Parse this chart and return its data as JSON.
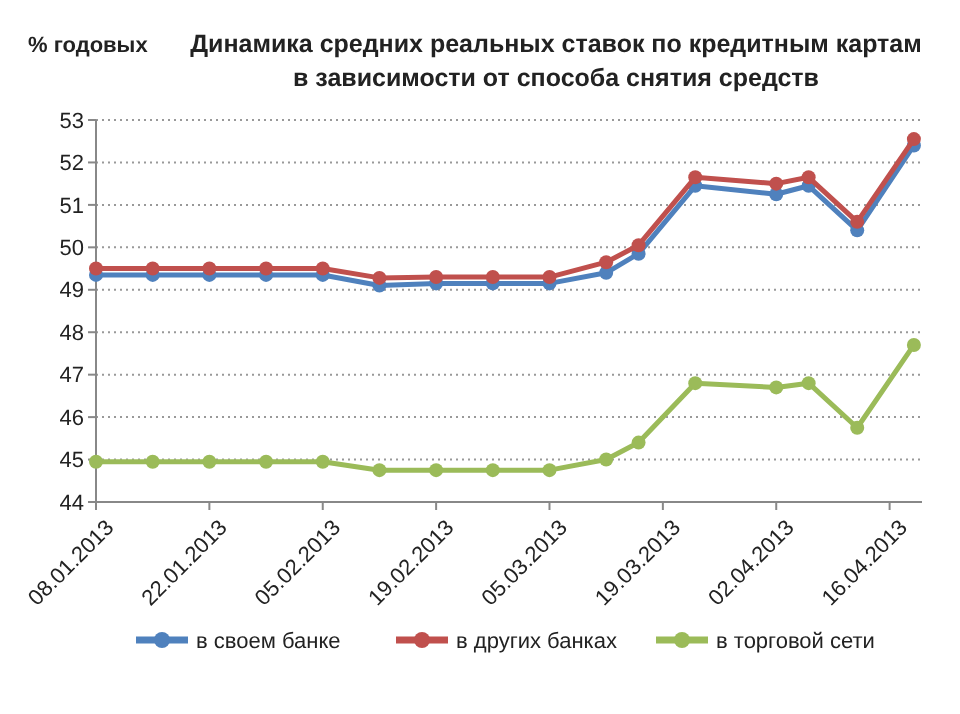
{
  "chart_data": {
    "type": "line",
    "title": "Динамика средних реальных ставок по кредитным картам в зависимости от способа снятия средств",
    "ylabel": "% годовых",
    "x": [
      "2013-01-08",
      "2013-01-15",
      "2013-01-22",
      "2013-01-29",
      "2013-02-05",
      "2013-02-12",
      "2013-02-19",
      "2013-02-26",
      "2013-03-05",
      "2013-03-12",
      "2013-03-16",
      "2013-03-23",
      "2013-04-02",
      "2013-04-06",
      "2013-04-12",
      "2013-04-19"
    ],
    "series": [
      {
        "name": "в своем банке",
        "color": "#4f81bd",
        "values": [
          49.35,
          49.35,
          49.35,
          49.35,
          49.35,
          49.1,
          49.15,
          49.15,
          49.15,
          49.4,
          49.85,
          51.45,
          51.25,
          51.45,
          50.4,
          52.4
        ]
      },
      {
        "name": "в других банках",
        "color": "#c0504d",
        "values": [
          49.5,
          49.5,
          49.5,
          49.5,
          49.5,
          49.28,
          49.3,
          49.3,
          49.3,
          49.65,
          50.05,
          51.65,
          51.5,
          51.65,
          50.6,
          52.55
        ]
      },
      {
        "name": "в торговой сети",
        "color": "#9bbb59",
        "values": [
          44.95,
          44.95,
          44.95,
          44.95,
          44.95,
          44.75,
          44.75,
          44.75,
          44.75,
          45.0,
          45.4,
          46.8,
          46.7,
          46.8,
          45.75,
          47.7
        ]
      }
    ],
    "xlim": [
      "2013-01-08",
      "2013-04-20"
    ],
    "xticks": [
      {
        "value": "2013-01-08",
        "label": "08.01.2013"
      },
      {
        "value": "2013-01-22",
        "label": "22.01.2013"
      },
      {
        "value": "2013-02-05",
        "label": "05.02.2013"
      },
      {
        "value": "2013-02-19",
        "label": "19.02.2013"
      },
      {
        "value": "2013-03-05",
        "label": "05.03.2013"
      },
      {
        "value": "2013-03-19",
        "label": "19.03.2013"
      },
      {
        "value": "2013-04-02",
        "label": "02.04.2013"
      },
      {
        "value": "2013-04-16",
        "label": "16.04.2013"
      }
    ],
    "ylim": [
      44,
      53
    ],
    "yticks": [
      44,
      45,
      46,
      47,
      48,
      49,
      50,
      51,
      52,
      53
    ],
    "grid": "y",
    "legend": "bottom",
    "marker": "circle",
    "line_style": "solid"
  }
}
